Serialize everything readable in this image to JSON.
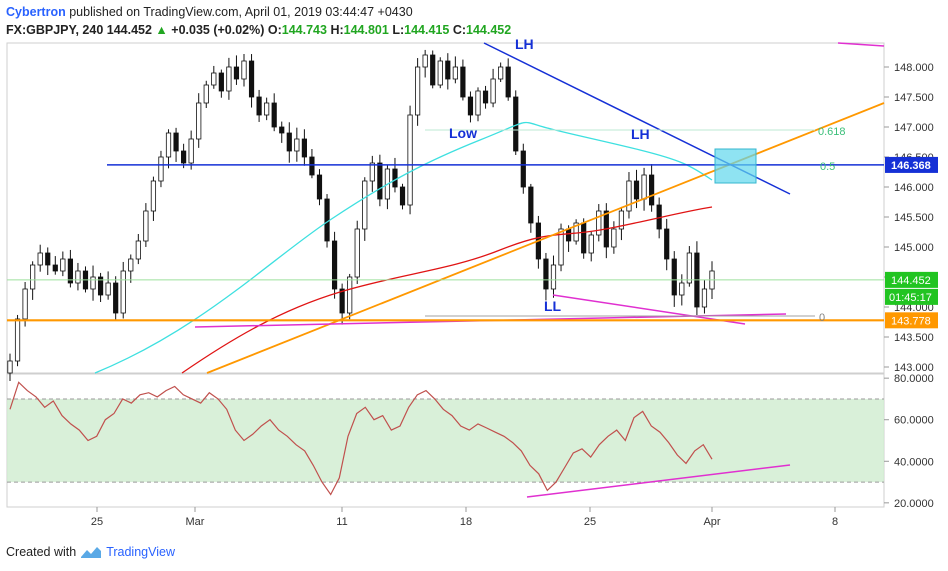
{
  "header": {
    "author": "Cybertron",
    "published_text": "published on TradingView.com, April 01, 2019 03:44:47 +0430",
    "symbol": "FX:GBPJPY, 240",
    "last": "144.452",
    "change": "+0.035 (+0.02%)",
    "open_label": "O:",
    "open": "144.743",
    "high_label": "H:",
    "high": "144.801",
    "low_label": "L:",
    "low": "144.415",
    "close_label": "C:",
    "close": "144.452"
  },
  "footer": {
    "created_with": "Created with",
    "brand": "TradingView"
  },
  "colors": {
    "up": "#21a621",
    "blue_line": "#1530d6",
    "orange_line": "#ff9800",
    "red_ma": "#e01414",
    "cyan_ma": "#3ee0e0",
    "magenta": "#e030d0",
    "rsi": "#c0504d",
    "rsi_band": "#cfeccf",
    "last_price_bg": "#21c421",
    "support_bg": "#ff9800",
    "resist_bg": "#1530d6"
  },
  "chart_data": {
    "type": "candlestick",
    "ylim": [
      142.9,
      148.4
    ],
    "price_ticks": [
      "148.000",
      "147.500",
      "147.000",
      "146.500",
      "146.000",
      "145.500",
      "145.000",
      "144.500",
      "144.000",
      "143.500",
      "143.000"
    ],
    "x_ticks": [
      "25",
      "Mar",
      "11",
      "18",
      "25",
      "Apr",
      "8"
    ],
    "price_labels": {
      "last": "144.452",
      "countdown": "01:45:17",
      "support": "143.778",
      "resistance": "146.368"
    },
    "annotations": {
      "lh_top": "LH",
      "low": "Low",
      "lh_mid": "LH",
      "ll": "LL"
    },
    "fib_levels": [
      {
        "label": "0.618",
        "value": 146.95
      },
      {
        "label": "0.5",
        "value": 146.37
      },
      {
        "label": "0",
        "value": 143.8
      }
    ],
    "horizontal_lines": [
      {
        "name": "resistance",
        "value": 146.368,
        "color": "#1530d6"
      },
      {
        "name": "support",
        "value": 143.778,
        "color": "#ff9800"
      }
    ],
    "close_series": [
      143.1,
      143.8,
      144.3,
      144.7,
      144.9,
      144.7,
      144.6,
      144.8,
      144.4,
      144.6,
      144.3,
      144.5,
      144.2,
      144.4,
      143.9,
      144.6,
      144.8,
      145.1,
      145.6,
      146.1,
      146.5,
      146.9,
      146.6,
      146.4,
      146.8,
      147.4,
      147.7,
      147.9,
      147.6,
      148.0,
      147.8,
      148.1,
      147.5,
      147.2,
      147.4,
      147.0,
      146.9,
      146.6,
      146.8,
      146.5,
      146.2,
      145.8,
      145.1,
      144.3,
      143.9,
      144.5,
      145.3,
      146.1,
      146.4,
      145.8,
      146.3,
      146.0,
      145.7,
      147.2,
      148.0,
      148.2,
      147.7,
      148.1,
      147.8,
      148.0,
      147.5,
      147.2,
      147.6,
      147.4,
      147.8,
      148.0,
      147.5,
      146.6,
      146.0,
      145.4,
      144.8,
      144.3,
      144.7,
      145.3,
      145.1,
      145.4,
      144.9,
      145.2,
      145.6,
      145.0,
      145.3,
      145.6,
      146.1,
      145.8,
      146.2,
      145.7,
      145.3,
      144.8,
      144.2,
      144.4,
      144.9,
      144.0,
      144.3,
      144.6
    ],
    "rsi": {
      "ticks": [
        "80.0000",
        "60.0000",
        "40.0000",
        "20.0000"
      ],
      "ylim": [
        18,
        82
      ],
      "band": [
        30,
        70
      ],
      "values": [
        65,
        78,
        74,
        71,
        66,
        69,
        62,
        58,
        55,
        50,
        52,
        60,
        63,
        70,
        68,
        72,
        73,
        71,
        74,
        76,
        72,
        70,
        68,
        73,
        70,
        65,
        55,
        50,
        53,
        57,
        60,
        55,
        52,
        48,
        45,
        38,
        30,
        24,
        32,
        52,
        63,
        66,
        60,
        62,
        55,
        57,
        66,
        72,
        74,
        70,
        65,
        62,
        57,
        55,
        58,
        56,
        54,
        52,
        49,
        45,
        38,
        34,
        26,
        30,
        37,
        44,
        46,
        42,
        48,
        52,
        55,
        50,
        61,
        64,
        57,
        54,
        49,
        43,
        39,
        45,
        48,
        41
      ]
    }
  }
}
